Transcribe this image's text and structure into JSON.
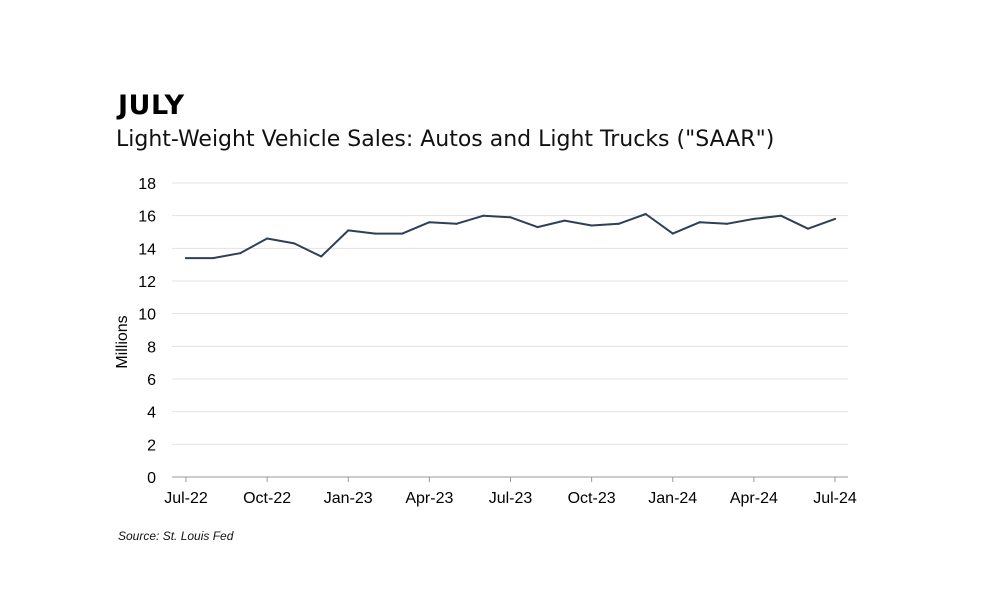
{
  "heading": "JULY",
  "chart_data": {
    "type": "line",
    "title": "Light-Weight Vehicle Sales: Autos and Light Trucks (\"SAAR\")",
    "xlabel": "",
    "ylabel": "Millions",
    "ylim": [
      0,
      18
    ],
    "yticks": [
      0,
      2,
      4,
      6,
      8,
      10,
      12,
      14,
      16,
      18
    ],
    "grid": true,
    "categories": [
      "Jul-22",
      "Aug-22",
      "Sep-22",
      "Oct-22",
      "Nov-22",
      "Dec-22",
      "Jan-23",
      "Feb-23",
      "Mar-23",
      "Apr-23",
      "May-23",
      "Jun-23",
      "Jul-23",
      "Aug-23",
      "Sep-23",
      "Oct-23",
      "Nov-23",
      "Dec-23",
      "Jan-24",
      "Feb-24",
      "Mar-24",
      "Apr-24",
      "May-24",
      "Jun-24",
      "Jul-24"
    ],
    "xtick_labels": [
      "Jul-22",
      "Oct-22",
      "Jan-23",
      "Apr-23",
      "Jul-23",
      "Oct-23",
      "Jan-24",
      "Apr-24",
      "Jul-24"
    ],
    "series": [
      {
        "name": "Light-Weight Vehicle Sales",
        "color": "#2e4057",
        "values": [
          13.4,
          13.4,
          13.7,
          14.6,
          14.3,
          13.5,
          15.1,
          14.9,
          14.9,
          15.6,
          15.5,
          16.0,
          15.9,
          15.3,
          15.7,
          15.4,
          15.5,
          16.1,
          14.9,
          15.6,
          15.5,
          15.8,
          16.0,
          15.2,
          15.8
        ]
      }
    ]
  },
  "source": "Source: St. Louis Fed"
}
